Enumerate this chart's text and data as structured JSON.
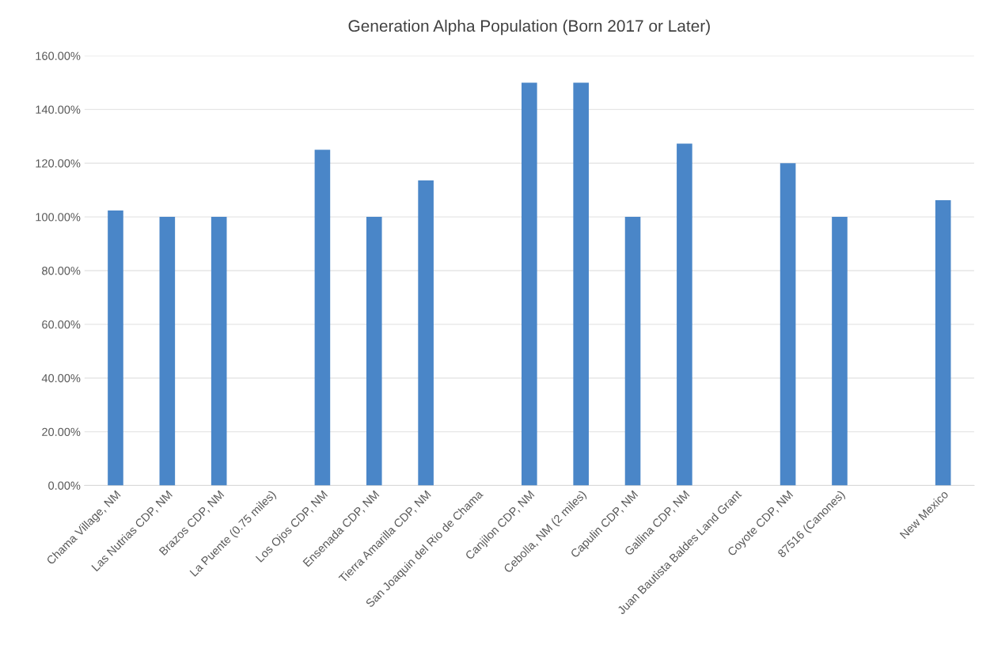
{
  "chart_data": {
    "type": "bar",
    "title": "Generation Alpha Population (Born 2017 or Later)",
    "categories": [
      "Chama Village, NM",
      "Las Nutrias CDP, NM",
      "Brazos CDP, NM",
      "La Puente (0.75 miles)",
      "Los Ojos CDP, NM",
      "Ensenada CDP, NM",
      "Tierra Amarilla CDP, NM",
      "San Joaquin del Rio de Chama",
      "Canjilon CDP, NM",
      "Cebolla, NM (2 miles)",
      "Capulin CDP, NM",
      "Gallina CDP, NM",
      "Juan Bautista Baldes Land Grant",
      "Coyote CDP, NM",
      "87516 (Canones)",
      null,
      "New Mexico"
    ],
    "values": [
      102.4,
      100,
      100,
      null,
      125,
      100,
      113.6,
      null,
      150,
      150,
      100,
      127.3,
      null,
      120,
      100,
      null,
      106.2
    ],
    "color": "#4a86c8",
    "ylim": [
      0,
      160
    ],
    "yticks": [
      {
        "value": 0,
        "label": "0.00%"
      },
      {
        "value": 20,
        "label": "20.00%"
      },
      {
        "value": 40,
        "label": "40.00%"
      },
      {
        "value": 60,
        "label": "60.00%"
      },
      {
        "value": 80,
        "label": "80.00%"
      },
      {
        "value": 100,
        "label": "100.00%"
      },
      {
        "value": 120,
        "label": "120.00%"
      },
      {
        "value": 140,
        "label": "140.00%"
      },
      {
        "value": 160,
        "label": "160.00%"
      }
    ],
    "grid": "y"
  }
}
